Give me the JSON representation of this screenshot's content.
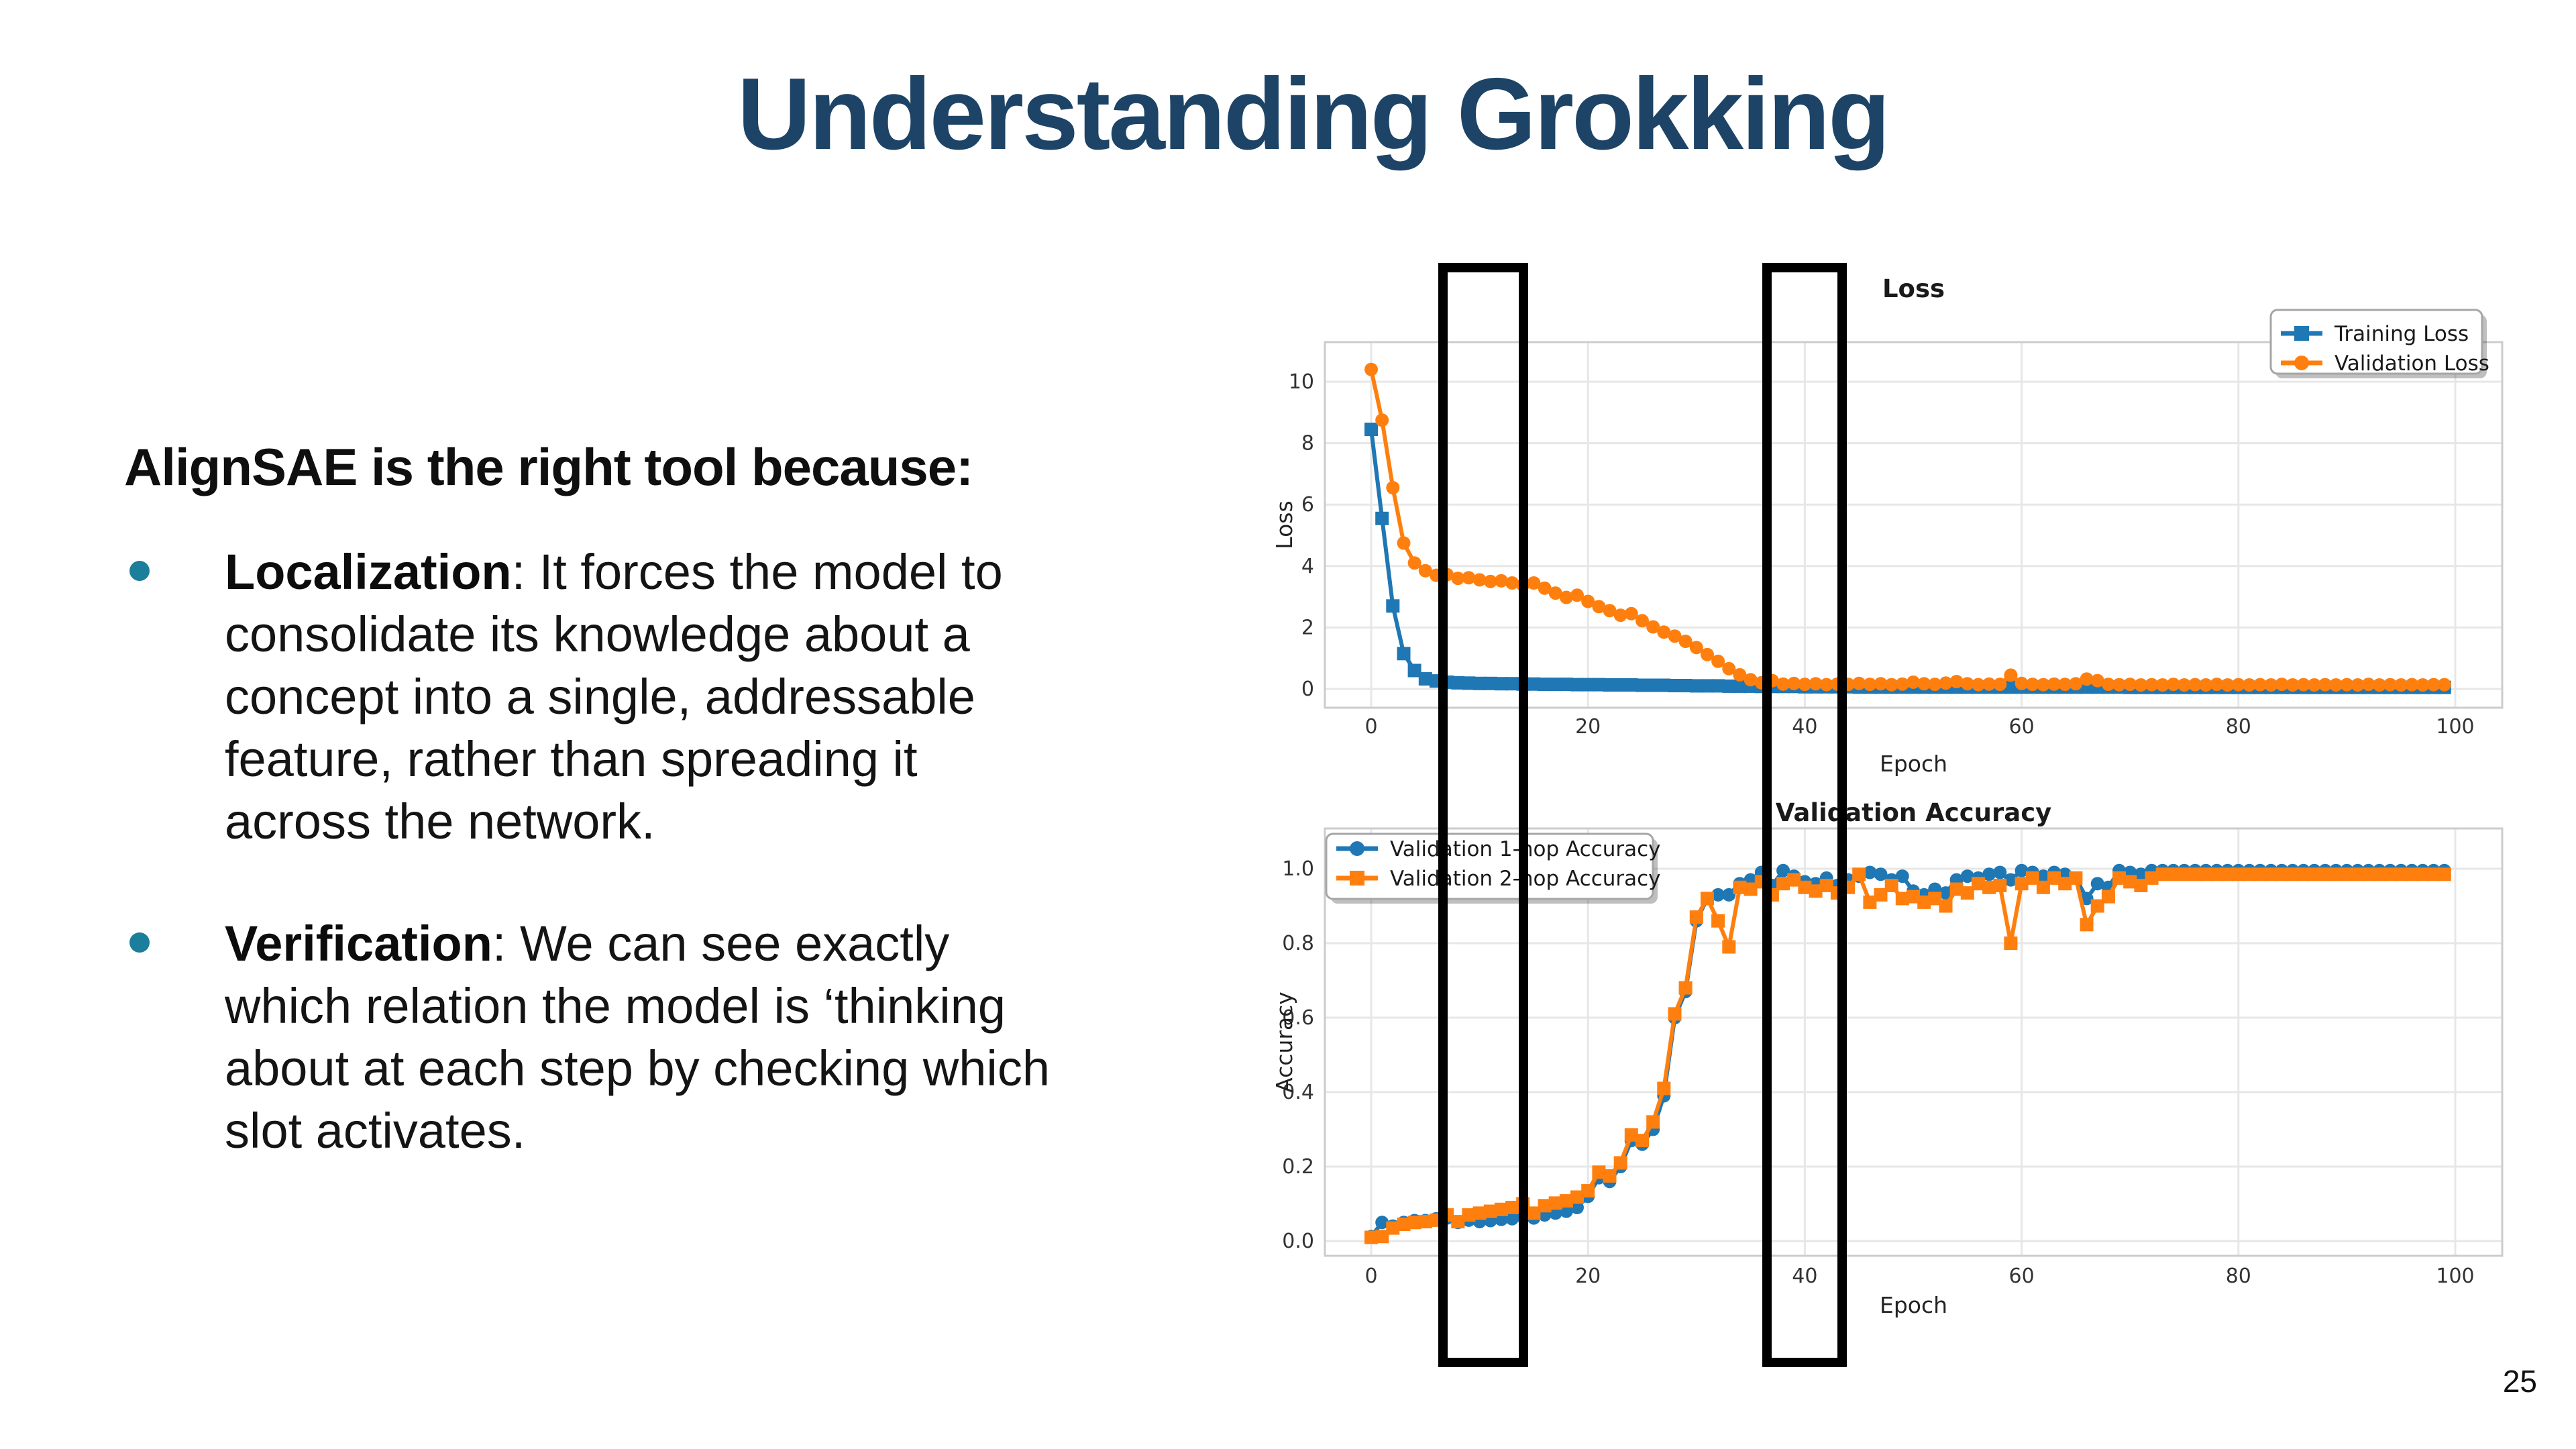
{
  "slide": {
    "title": "Understanding Grokking",
    "page_number": "25"
  },
  "content": {
    "heading": "AlignSAE is the right tool because:",
    "bullets": [
      {
        "lead": "Localization",
        "lead_rest": ": It forces the model to",
        "lines": [
          "consolidate its knowledge about a",
          "concept into a single, addressable",
          "feature, rather than spreading it",
          "across the network."
        ]
      },
      {
        "lead": "Verification",
        "lead_rest": ": We can see exactly",
        "lines": [
          "which relation the model is ‘thinking",
          "about at each step by checking which",
          "slot activates."
        ]
      }
    ]
  },
  "colors": {
    "title_navy": "#1d4466",
    "bullet_teal": "#1b7e9b",
    "series_blue": "#1f77b4",
    "series_orange": "#ff7f0e",
    "grid": "#e7e7e7",
    "spine": "#cccccc",
    "highlight_box": "#000000"
  },
  "annotations": {
    "highlight_boxes": [
      {
        "shape": "vertical-rectangle",
        "epoch_range": [
          7,
          14
        ]
      },
      {
        "shape": "vertical-rectangle",
        "epoch_range": [
          37,
          44
        ]
      }
    ]
  },
  "chart_data": [
    {
      "type": "line",
      "title": "Loss",
      "xlabel": "Epoch",
      "ylabel": "Loss",
      "x": "epoch index 0-99",
      "xlim": [
        -4.3,
        104.3
      ],
      "ylim": [
        -0.6,
        11.3
      ],
      "grid": true,
      "legend_position": "upper right",
      "xticks": [
        0,
        20,
        40,
        60,
        80,
        100
      ],
      "xtick_labels": [
        "0",
        "20",
        "40",
        "60",
        "80",
        "100"
      ],
      "yticks": [
        0,
        2,
        4,
        6,
        8,
        10
      ],
      "ytick_labels": [
        "0",
        "2",
        "4",
        "6",
        "8",
        "10"
      ],
      "series": [
        {
          "name": "Training Loss",
          "color": "#1f77b4",
          "marker": "square",
          "values": [
            8.45,
            5.55,
            2.7,
            1.15,
            0.6,
            0.33,
            0.26,
            0.22,
            0.2,
            0.19,
            0.18,
            0.18,
            0.17,
            0.17,
            0.16,
            0.16,
            0.15,
            0.15,
            0.15,
            0.14,
            0.14,
            0.14,
            0.13,
            0.13,
            0.13,
            0.12,
            0.12,
            0.12,
            0.11,
            0.11,
            0.1,
            0.1,
            0.1,
            0.09,
            0.09,
            0.09,
            0.08,
            0.08,
            0.08,
            0.08,
            0.07,
            0.07,
            0.07,
            0.07,
            0.07,
            0.06,
            0.06,
            0.06,
            0.06,
            0.06,
            0.06,
            0.06,
            0.06,
            0.06,
            0.06,
            0.06,
            0.06,
            0.06,
            0.06,
            0.06,
            0.06,
            0.06,
            0.06,
            0.06,
            0.06,
            0.06,
            0.06,
            0.06,
            0.06,
            0.06,
            0.05,
            0.05,
            0.05,
            0.05,
            0.05,
            0.05,
            0.05,
            0.05,
            0.05,
            0.05,
            0.05,
            0.05,
            0.05,
            0.05,
            0.05,
            0.05,
            0.05,
            0.05,
            0.05,
            0.05,
            0.05,
            0.05,
            0.05,
            0.05,
            0.05,
            0.05,
            0.05,
            0.05,
            0.05,
            0.05
          ]
        },
        {
          "name": "Validation Loss",
          "color": "#ff7f0e",
          "marker": "circle",
          "values": [
            10.4,
            8.75,
            6.55,
            4.75,
            4.1,
            3.85,
            3.7,
            3.72,
            3.6,
            3.62,
            3.55,
            3.5,
            3.52,
            3.45,
            3.38,
            3.45,
            3.28,
            3.12,
            2.98,
            3.05,
            2.85,
            2.68,
            2.55,
            2.4,
            2.45,
            2.22,
            2.02,
            1.85,
            1.72,
            1.55,
            1.35,
            1.12,
            0.9,
            0.66,
            0.46,
            0.3,
            0.2,
            0.27,
            0.16,
            0.18,
            0.15,
            0.17,
            0.14,
            0.16,
            0.15,
            0.18,
            0.15,
            0.17,
            0.14,
            0.16,
            0.22,
            0.17,
            0.15,
            0.19,
            0.24,
            0.17,
            0.14,
            0.16,
            0.15,
            0.45,
            0.18,
            0.15,
            0.14,
            0.16,
            0.15,
            0.17,
            0.32,
            0.27,
            0.15,
            0.14,
            0.15,
            0.13,
            0.14,
            0.13,
            0.15,
            0.13,
            0.14,
            0.13,
            0.15,
            0.13,
            0.14,
            0.13,
            0.14,
            0.13,
            0.15,
            0.13,
            0.14,
            0.13,
            0.14,
            0.13,
            0.14,
            0.13,
            0.15,
            0.13,
            0.14,
            0.13,
            0.14,
            0.13,
            0.14,
            0.14
          ]
        }
      ]
    },
    {
      "type": "line",
      "title": "Validation Accuracy",
      "xlabel": "Epoch",
      "ylabel": "Accuracy",
      "x": "epoch index 0-99",
      "xlim": [
        -4.3,
        104.3
      ],
      "ylim": [
        -0.04,
        1.08
      ],
      "grid": true,
      "legend_position": "upper left",
      "xticks": [
        0,
        20,
        40,
        60,
        80,
        100
      ],
      "xtick_labels": [
        "0",
        "20",
        "40",
        "60",
        "80",
        "100"
      ],
      "yticks": [
        0,
        0.2,
        0.4,
        0.6,
        0.8,
        1.0
      ],
      "ytick_labels": [
        "0.0",
        "0.2",
        "0.4",
        "0.6",
        "0.8",
        "1.0"
      ],
      "series": [
        {
          "name": "Validation 1-hop Accuracy",
          "color": "#1f77b4",
          "marker": "circle",
          "values": [
            0.012,
            0.05,
            0.04,
            0.05,
            0.055,
            0.055,
            0.06,
            0.062,
            0.05,
            0.056,
            0.052,
            0.055,
            0.058,
            0.06,
            0.065,
            0.062,
            0.07,
            0.075,
            0.08,
            0.09,
            0.12,
            0.17,
            0.16,
            0.2,
            0.27,
            0.26,
            0.3,
            0.39,
            0.6,
            0.67,
            0.86,
            0.92,
            0.93,
            0.93,
            0.96,
            0.97,
            0.99,
            0.955,
            0.995,
            0.98,
            0.965,
            0.96,
            0.975,
            0.955,
            0.97,
            0.98,
            0.99,
            0.985,
            0.97,
            0.98,
            0.94,
            0.93,
            0.945,
            0.935,
            0.97,
            0.98,
            0.975,
            0.985,
            0.99,
            0.97,
            0.995,
            0.99,
            0.98,
            0.99,
            0.985,
            0.975,
            0.92,
            0.96,
            0.95,
            0.995,
            0.99,
            0.985,
            0.995,
            0.995,
            0.995,
            0.995,
            0.995,
            0.995,
            0.995,
            0.995,
            0.995,
            0.995,
            0.995,
            0.995,
            0.995,
            0.995,
            0.995,
            0.995,
            0.995,
            0.995,
            0.995,
            0.995,
            0.995,
            0.995,
            0.995,
            0.995,
            0.995,
            0.995,
            0.995,
            0.995
          ]
        },
        {
          "name": "Validation 2-hop Accuracy",
          "color": "#ff7f0e",
          "marker": "square",
          "values": [
            0.01,
            0.012,
            0.035,
            0.045,
            0.05,
            0.052,
            0.056,
            0.07,
            0.052,
            0.07,
            0.075,
            0.08,
            0.085,
            0.09,
            0.1,
            0.075,
            0.095,
            0.102,
            0.108,
            0.118,
            0.135,
            0.185,
            0.175,
            0.21,
            0.285,
            0.27,
            0.32,
            0.41,
            0.61,
            0.68,
            0.87,
            0.92,
            0.86,
            0.79,
            0.95,
            0.945,
            0.965,
            0.93,
            0.96,
            0.97,
            0.95,
            0.94,
            0.955,
            0.935,
            0.95,
            0.985,
            0.91,
            0.93,
            0.955,
            0.92,
            0.925,
            0.91,
            0.92,
            0.9,
            0.945,
            0.935,
            0.96,
            0.95,
            0.955,
            0.8,
            0.96,
            0.975,
            0.95,
            0.975,
            0.96,
            0.975,
            0.85,
            0.9,
            0.925,
            0.975,
            0.965,
            0.955,
            0.975,
            0.985,
            0.985,
            0.985,
            0.985,
            0.985,
            0.985,
            0.985,
            0.985,
            0.985,
            0.985,
            0.985,
            0.985,
            0.985,
            0.985,
            0.985,
            0.985,
            0.985,
            0.985,
            0.985,
            0.985,
            0.985,
            0.985,
            0.985,
            0.985,
            0.985,
            0.985,
            0.985
          ]
        }
      ]
    }
  ]
}
